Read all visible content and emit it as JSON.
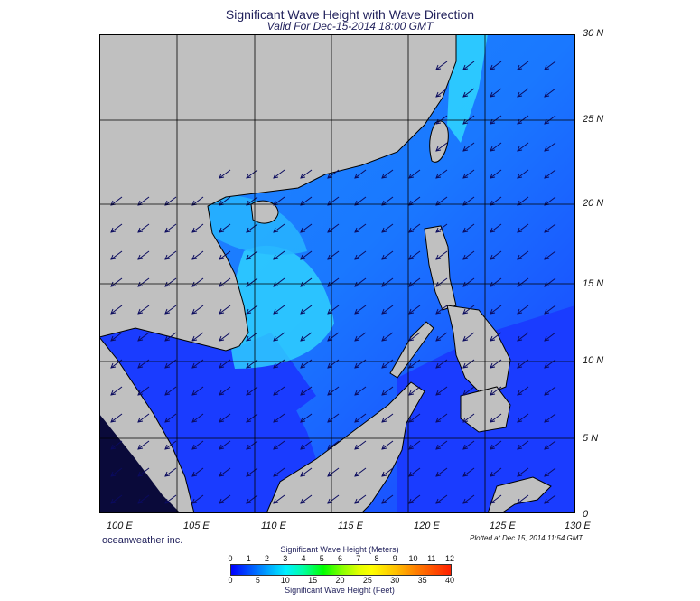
{
  "header": {
    "title": "Significant Wave Height with Wave Direction",
    "subtitle": "Valid For Dec-15-2014 18:00 GMT"
  },
  "map": {
    "lat_labels": [
      "30 N",
      "25 N",
      "20 N",
      "15 N",
      "10 N",
      "5 N",
      "0"
    ],
    "lon_labels": [
      "100 E",
      "105 E",
      "110 E",
      "115 E",
      "120 E",
      "125 E",
      "130 E"
    ],
    "wave_direction": "northeast to southwest",
    "colors": {
      "land": "#c0c0c0",
      "calm_sea": "#1a3cff",
      "moderate_sea": "#1f8cff",
      "high_sea": "#2fd6ff",
      "grid": "#000000"
    }
  },
  "footer": {
    "credit": "oceanweather inc.",
    "plotted": "Plotted at Dec 15, 2014 11:54 GMT"
  },
  "legend": {
    "meters_title": "Significant Wave Height (Meters)",
    "meters_ticks": [
      "0",
      "1",
      "2",
      "3",
      "4",
      "5",
      "6",
      "7",
      "8",
      "9",
      "10",
      "11",
      "12"
    ],
    "feet_title": "Significant Wave Height (Feet)",
    "feet_ticks": [
      "0",
      "5",
      "10",
      "15",
      "20",
      "25",
      "30",
      "35",
      "40"
    ]
  }
}
